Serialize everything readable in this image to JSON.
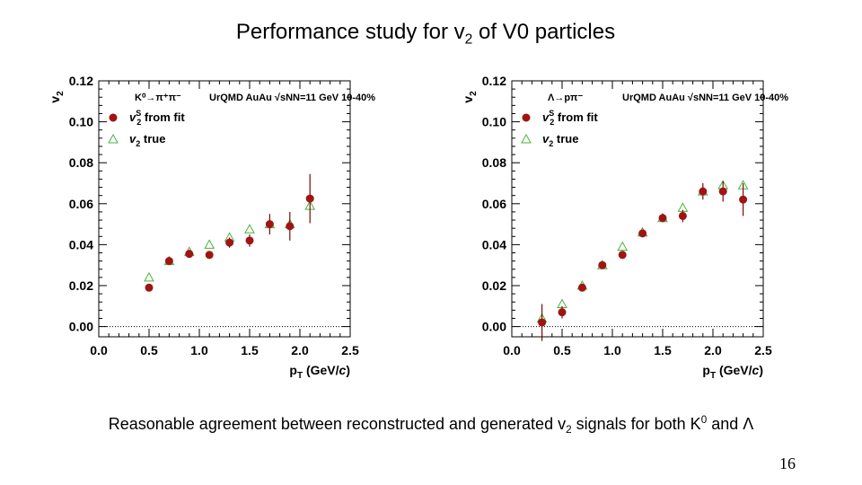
{
  "slide": {
    "title_prefix": "Performance study for v",
    "title_sub": "2",
    "title_suffix": " of V0 particles",
    "caption_part1": "Reasonable agreement between reconstructed and generated v",
    "caption_sub": "2",
    "caption_part2": " signals for both K",
    "caption_sup": "0",
    "caption_part3": " and Λ",
    "page_number": "16"
  },
  "colors": {
    "fit_marker": "#a01414",
    "true_marker": "#46b43c",
    "error_bar": "#7a0a0a",
    "axis": "#000000"
  },
  "chart_data": [
    {
      "type": "scatter",
      "xlim": [
        0,
        2.5
      ],
      "ylim": [
        -0.005,
        0.12
      ],
      "x_ticks": [
        0.0,
        0.5,
        1.0,
        1.5,
        2.0,
        2.5
      ],
      "x_tick_labels": [
        "0.0",
        "0.5",
        "1.0",
        "1.5",
        "2.0",
        "2.5"
      ],
      "y_ticks": [
        0.0,
        0.02,
        0.04,
        0.06,
        0.08,
        0.1,
        0.12
      ],
      "y_tick_labels": [
        "0.00",
        "0.02",
        "0.04",
        "0.06",
        "0.08",
        "0.10",
        "0.12"
      ],
      "xlabel_main": "p",
      "xlabel_sub": "T",
      "xlabel_rest": " (GeV/",
      "xlabel_italic": "c",
      "xlabel_close": ")",
      "ylabel_main": "v",
      "ylabel_sub": "2",
      "grid": false,
      "zero_line": true,
      "annotation_decay": "K⁰→π⁺π⁻",
      "annotation_system": "UrQMD AuAu √sNN=11 GeV 10-40%",
      "legend_position": "top-left",
      "series": [
        {
          "name_main": "v",
          "name_sub": "2",
          "name_sup": "S",
          "name_rest": " from fit",
          "marker": "filled-circle",
          "x": [
            0.5,
            0.7,
            0.9,
            1.1,
            1.3,
            1.5,
            1.7,
            1.9,
            2.1
          ],
          "y": [
            0.019,
            0.032,
            0.0355,
            0.035,
            0.041,
            0.042,
            0.05,
            0.049,
            0.0625
          ],
          "err": [
            0.001,
            0.0012,
            0.0015,
            0.0018,
            0.0025,
            0.003,
            0.005,
            0.007,
            0.012
          ]
        },
        {
          "name_main": "v",
          "name_sub": "2",
          "name_sup": "",
          "name_rest": " true",
          "marker": "open-triangle",
          "x": [
            0.5,
            0.7,
            0.9,
            1.1,
            1.3,
            1.5,
            1.7,
            1.9,
            2.1
          ],
          "y": [
            0.024,
            0.032,
            0.0365,
            0.04,
            0.0435,
            0.0475,
            0.05,
            0.05,
            0.059
          ]
        }
      ]
    },
    {
      "type": "scatter",
      "xlim": [
        0,
        2.5
      ],
      "ylim": [
        -0.005,
        0.12
      ],
      "x_ticks": [
        0.0,
        0.5,
        1.0,
        1.5,
        2.0,
        2.5
      ],
      "x_tick_labels": [
        "0.0",
        "0.5",
        "1.0",
        "1.5",
        "2.0",
        "2.5"
      ],
      "y_ticks": [
        0.0,
        0.02,
        0.04,
        0.06,
        0.08,
        0.1,
        0.12
      ],
      "y_tick_labels": [
        "0.00",
        "0.02",
        "0.04",
        "0.06",
        "0.08",
        "0.10",
        "0.12"
      ],
      "xlabel_main": "p",
      "xlabel_sub": "T",
      "xlabel_rest": " (GeV/",
      "xlabel_italic": "c",
      "xlabel_close": ")",
      "ylabel_main": "v",
      "ylabel_sub": "2",
      "grid": false,
      "zero_line": true,
      "annotation_decay": "Λ→pπ⁻",
      "annotation_system": "UrQMD AuAu √sNN=11 GeV 10-40%",
      "legend_position": "top-left",
      "series": [
        {
          "name_main": "v",
          "name_sub": "2",
          "name_sup": "S",
          "name_rest": " from fit",
          "marker": "filled-circle",
          "x": [
            0.3,
            0.5,
            0.7,
            0.9,
            1.1,
            1.3,
            1.5,
            1.7,
            1.9,
            2.1,
            2.3
          ],
          "y": [
            0.002,
            0.007,
            0.019,
            0.03,
            0.035,
            0.0455,
            0.053,
            0.054,
            0.066,
            0.066,
            0.062
          ],
          "err": [
            0.009,
            0.003,
            0.0015,
            0.0012,
            0.0012,
            0.0015,
            0.002,
            0.003,
            0.004,
            0.005,
            0.008
          ]
        },
        {
          "name_main": "v",
          "name_sub": "2",
          "name_sup": "",
          "name_rest": " true",
          "marker": "open-triangle",
          "x": [
            0.3,
            0.5,
            0.7,
            0.9,
            1.1,
            1.3,
            1.5,
            1.7,
            1.9,
            2.1,
            2.3
          ],
          "y": [
            0.004,
            0.011,
            0.02,
            0.03,
            0.039,
            0.046,
            0.053,
            0.058,
            0.066,
            0.069,
            0.069
          ]
        }
      ]
    }
  ]
}
